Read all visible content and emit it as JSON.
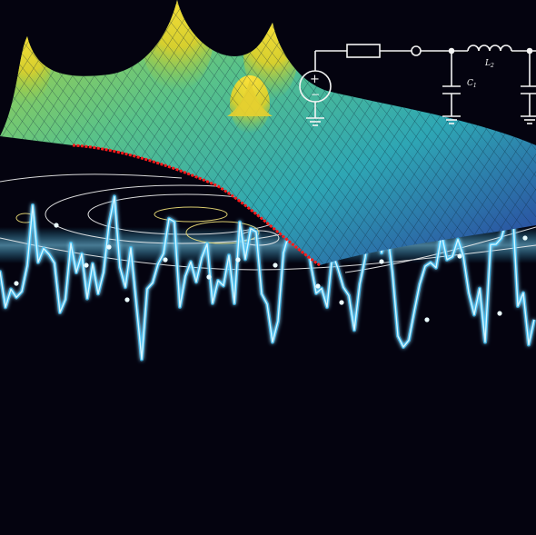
{
  "circuit": {
    "capacitor_label": "C",
    "capacitor_index": "1",
    "inductor_label": "L",
    "inductor_index": "2",
    "source_plus": "+",
    "source_minus": "−"
  },
  "colors": {
    "background": "#04030f",
    "waveform": "#35c8ff",
    "waveform_core": "#d8f6ff",
    "trace_line": "#ff1a1a",
    "circuit": "#f4f4f4",
    "surface_low": "#2a3fa0",
    "surface_mid": "#2fb0a8",
    "surface_high": "#f2c21e"
  }
}
